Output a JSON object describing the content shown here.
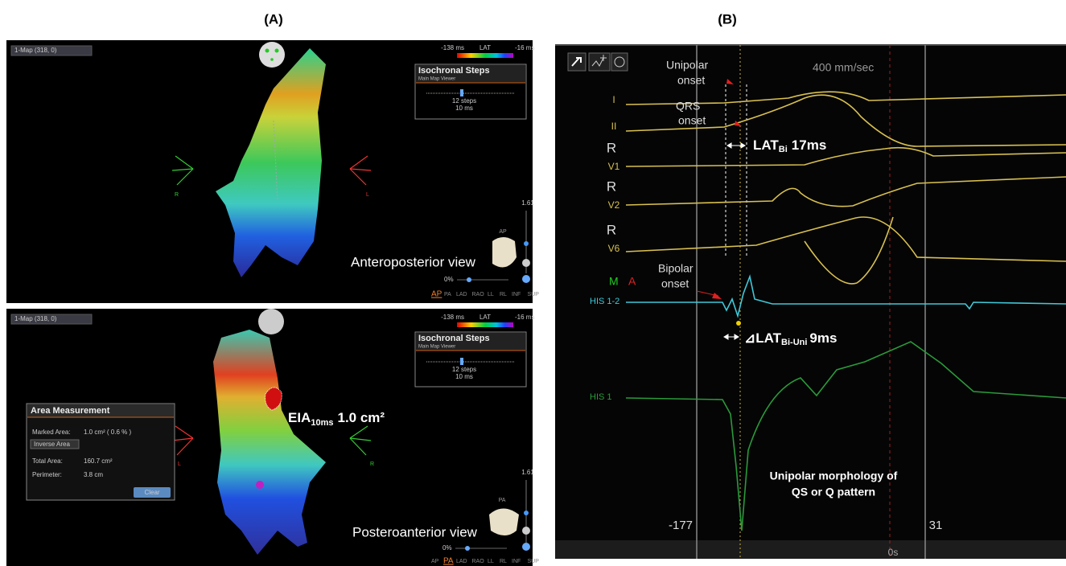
{
  "panel_a": {
    "label": "(A)",
    "top": {
      "map_selector": "1-Map (318, 0)",
      "lat_min": "-138 ms",
      "lat_title": "LAT",
      "lat_max": "-16 ms",
      "iso_title": "Isochronal Steps",
      "iso_subtitle": "Main Map Viewer",
      "iso_steps": "12 steps",
      "iso_ms": "10 ms",
      "axis_left": "R",
      "axis_right": "L",
      "scale": "1.61",
      "icon_label": "AP",
      "caption": "Anteroposterior view",
      "percent": "0%",
      "views": [
        "AP",
        "PA",
        "LAD",
        "RAO",
        "LL",
        "RL",
        "INF",
        "SUP"
      ]
    },
    "bottom": {
      "map_selector": "1-Map (318, 0)",
      "lat_min": "-138 ms",
      "lat_title": "LAT",
      "lat_max": "-16 ms",
      "iso_title": "Isochronal Steps",
      "iso_subtitle": "Main Map Viewer",
      "iso_steps": "12 steps",
      "iso_ms": "10 ms",
      "axis_left": "L",
      "axis_right": "R",
      "scale": "1.61",
      "icon_label": "PA",
      "caption": "Posteroanterior view",
      "percent": "0%",
      "views": [
        "AP",
        "PA",
        "LAD",
        "RAO",
        "LL",
        "RL",
        "INF",
        "SUP"
      ],
      "eia": {
        "main": "EIA",
        "sub": "10ms",
        "value": "1.0 cm²"
      },
      "area_measurement": {
        "title": "Area Measurement",
        "marked_label": "Marked Area:",
        "marked_value": "1.0 cm² ( 0.6 % )",
        "inverse_button": "Inverse Area",
        "total_label": "Total Area:",
        "total_value": "160.7 cm²",
        "perimeter_label": "Perimeter:",
        "perimeter_value": "3.8 cm",
        "clear_button": "Clear"
      }
    }
  },
  "panel_b": {
    "label": "(B)",
    "speed": "400 mm/sec",
    "unipolar_onset": [
      "Unipolar",
      "onset"
    ],
    "qrs_onset": [
      "QRS",
      "onset"
    ],
    "bipolar_onset": [
      "Bipolar",
      "onset"
    ],
    "lat_bi": {
      "main": "LAT",
      "sub": "Bi",
      "value": "17ms"
    },
    "delta_lat": {
      "main": "⊿LAT",
      "sub": "Bi-Uni",
      "value": "9ms"
    },
    "leads": [
      {
        "ref": null,
        "name": "I"
      },
      {
        "ref": null,
        "name": "II"
      },
      {
        "ref": "R",
        "name": "V1"
      },
      {
        "ref": "R",
        "name": "V2"
      },
      {
        "ref": "R",
        "name": "V6"
      }
    ],
    "marker_m": "M",
    "marker_a": "A",
    "his_bipolar": "HIS 1-2",
    "his_unipolar": "HIS 1",
    "morphology": [
      "Unipolar morphology of",
      "QS or Q pattern"
    ],
    "time_left": "-177",
    "time_right": "31",
    "time_zero": "0s"
  }
}
